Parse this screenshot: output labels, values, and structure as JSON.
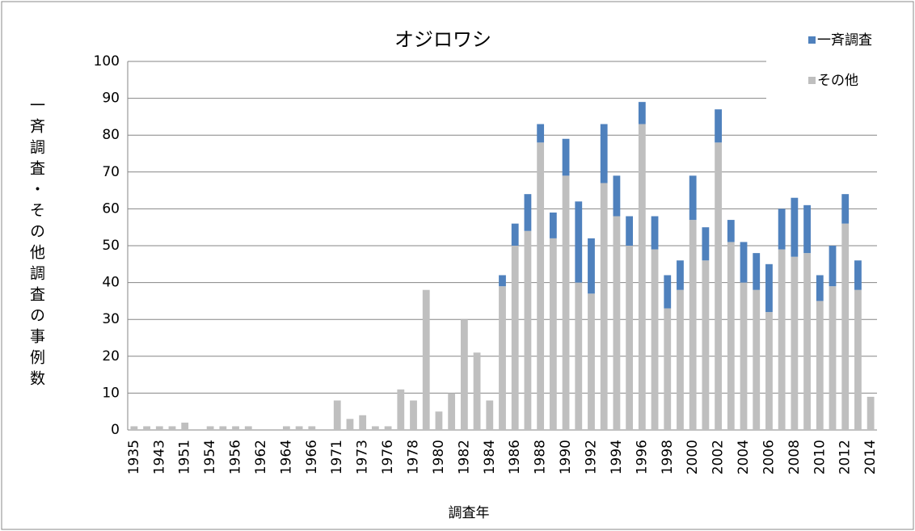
{
  "chart_data": {
    "type": "bar",
    "stacked": true,
    "title": "オジロワシ",
    "x_label": "調査年",
    "y_label": "一斉調査・その他調査の事例数",
    "categories": [
      "1935",
      null,
      "1943",
      null,
      "1951",
      null,
      "1954",
      null,
      "1956",
      null,
      "1962",
      null,
      "1964",
      null,
      "1966",
      null,
      "1971",
      null,
      "1973",
      null,
      "1976",
      null,
      "1978",
      null,
      "1980",
      null,
      "1982",
      null,
      "1984",
      null,
      "1986",
      null,
      "1988",
      null,
      "1990",
      null,
      "1992",
      null,
      "1994",
      null,
      "1996",
      null,
      "1998",
      null,
      "2000",
      null,
      "2002",
      null,
      "2004",
      null,
      "2006",
      null,
      "2008",
      null,
      "2010",
      null,
      "2012",
      null,
      "2014"
    ],
    "series": [
      {
        "name": "一斉調査",
        "color": "#4f81bd",
        "values": [
          0,
          0,
          0,
          0,
          0,
          0,
          0,
          0,
          0,
          0,
          0,
          0,
          0,
          0,
          0,
          0,
          0,
          0,
          0,
          0,
          0,
          0,
          0,
          0,
          0,
          0,
          0,
          0,
          0,
          3,
          6,
          10,
          5,
          7,
          10,
          22,
          15,
          16,
          11,
          8,
          6,
          9,
          9,
          8,
          12,
          9,
          9,
          6,
          11,
          10,
          13,
          11,
          16,
          13,
          7,
          11,
          8,
          8,
          0
        ]
      },
      {
        "name": "その他",
        "color": "#bfbfbf",
        "values": [
          1,
          1,
          1,
          1,
          2,
          0,
          1,
          1,
          1,
          1,
          0,
          0,
          1,
          1,
          1,
          0,
          8,
          3,
          4,
          1,
          1,
          11,
          8,
          38,
          5,
          10,
          30,
          21,
          8,
          39,
          50,
          54,
          78,
          52,
          69,
          40,
          37,
          67,
          58,
          50,
          83,
          49,
          33,
          38,
          57,
          46,
          78,
          51,
          40,
          38,
          32,
          49,
          47,
          48,
          35,
          39,
          56,
          38,
          9
        ]
      }
    ],
    "stack_order": [
      "その他",
      "一斉調査"
    ],
    "ylim": [
      0,
      100
    ],
    "yticks": [
      0,
      10,
      20,
      30,
      40,
      50,
      60,
      70,
      80,
      90,
      100
    ],
    "grid": true,
    "legend": "top-right"
  }
}
